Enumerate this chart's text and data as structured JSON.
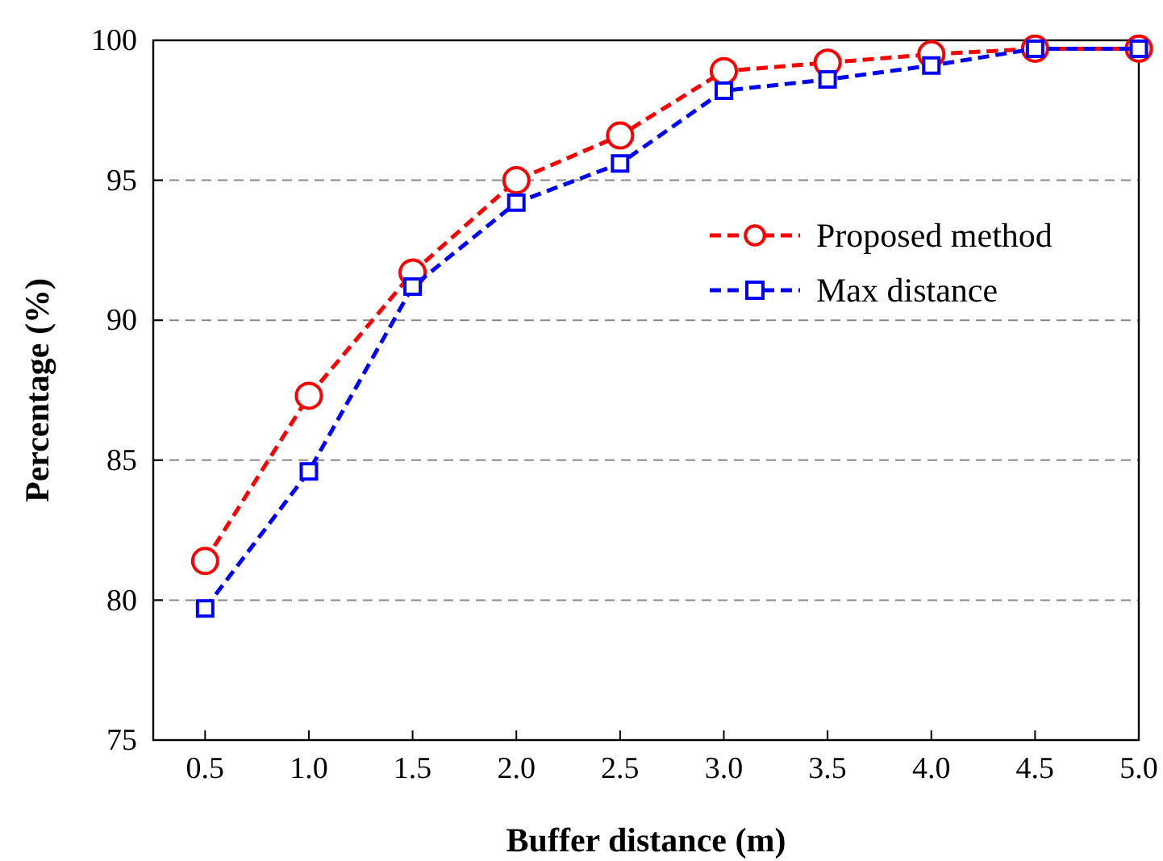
{
  "chart_data": {
    "type": "line",
    "xlabel": "Buffer distance (m)",
    "ylabel": "Percentage (%)",
    "x": [
      0.5,
      1.0,
      1.5,
      2.0,
      2.5,
      3.0,
      3.5,
      4.0,
      4.5,
      5.0
    ],
    "xlim": [
      0.25,
      5.0
    ],
    "xticks": [
      {
        "value": 0.5,
        "label": "0.5"
      },
      {
        "value": 1,
        "label": "1.0"
      },
      {
        "value": 1.5,
        "label": "1.5"
      },
      {
        "value": 2,
        "label": "2.0"
      },
      {
        "value": 2.5,
        "label": "2.5"
      },
      {
        "value": 3,
        "label": "3.0"
      },
      {
        "value": 3.5,
        "label": "3.5"
      },
      {
        "value": 4,
        "label": "4.0"
      },
      {
        "value": 4.5,
        "label": "4.5"
      },
      {
        "value": 5,
        "label": "5.0"
      }
    ],
    "ylim": [
      75,
      100
    ],
    "yticks": [
      75,
      80,
      85,
      90,
      95,
      100
    ],
    "grid": "y",
    "legend": "right",
    "line_style": "dashed",
    "series": [
      {
        "name": "Proposed method",
        "color": "#ff0000",
        "marker": "circle",
        "values": [
          81.4,
          87.3,
          91.7,
          95.0,
          96.6,
          98.9,
          99.2,
          99.5,
          99.7,
          99.7
        ]
      },
      {
        "name": "Max distance",
        "color": "#0000ff",
        "marker": "square",
        "values": [
          79.7,
          84.6,
          91.2,
          94.2,
          95.6,
          98.2,
          98.6,
          99.1,
          99.7,
          99.7
        ]
      }
    ]
  }
}
